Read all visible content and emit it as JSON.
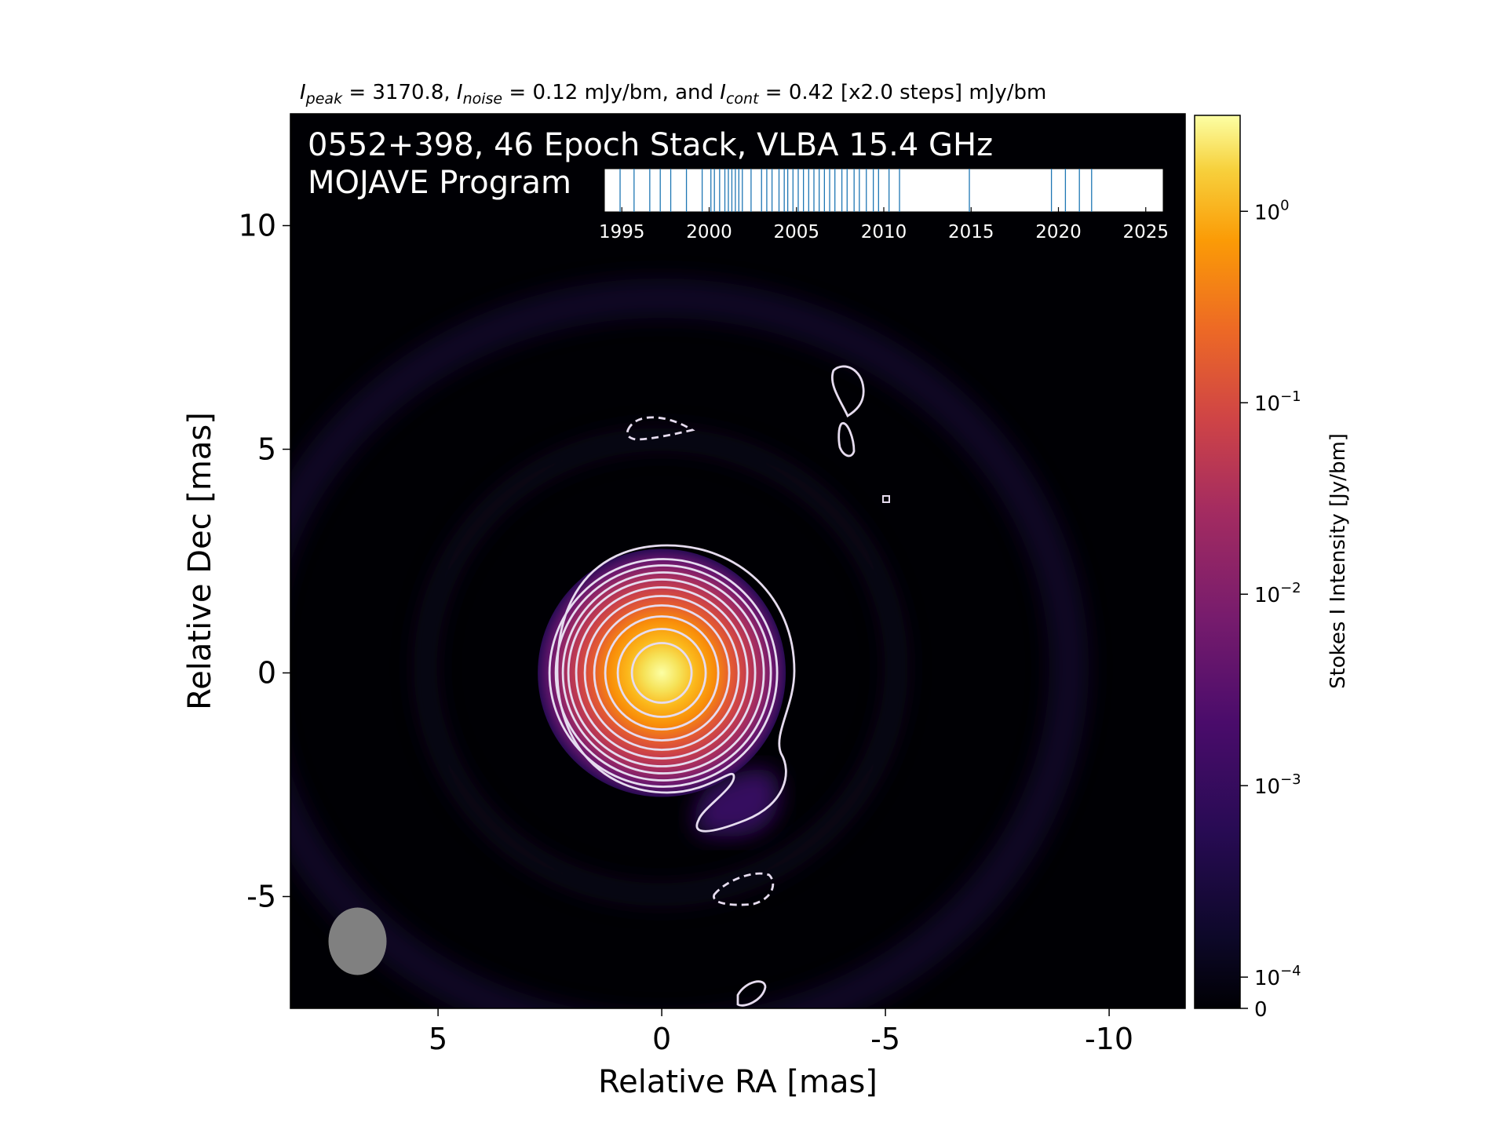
{
  "header": {
    "title_segments": [
      {
        "t": "I",
        "style": "italic"
      },
      {
        "t": "peak",
        "style": "sub"
      },
      {
        "t": " = 3170.8, ",
        "style": "normal"
      },
      {
        "t": "I",
        "style": "italic"
      },
      {
        "t": "noise",
        "style": "sub"
      },
      {
        "t": " = 0.12 mJy/bm, and ",
        "style": "normal"
      },
      {
        "t": "I",
        "style": "italic"
      },
      {
        "t": "cont",
        "style": "sub"
      },
      {
        "t": " = 0.42 [x2.0 steps] mJy/bm",
        "style": "normal"
      }
    ]
  },
  "panel": {
    "title_line1": "0552+398, 46 Epoch Stack, VLBA 15.4 GHz",
    "title_line2": "MOJAVE Program"
  },
  "colors": {
    "background": "#000004",
    "contour": "#e6dcef",
    "beam": "#808080",
    "epoch_line": "#1f77b4",
    "text_on_map": "#ffffff"
  },
  "chart_data": [
    {
      "type": "heatmap",
      "title": "",
      "xlabel": "Relative RA [mas]",
      "ylabel": "Relative Dec [mas]",
      "xlim": [
        8.3,
        -11.7
      ],
      "ylim": [
        -7.5,
        12.5
      ],
      "xticks": [
        5,
        0,
        -5,
        -10
      ],
      "xtick_labels": [
        "5",
        "0",
        "-5",
        "-10"
      ],
      "yticks": [
        10,
        5,
        0,
        -5
      ],
      "ytick_labels": [
        "10",
        "5",
        "0",
        "-5"
      ],
      "colormap": "inferno",
      "core": {
        "ra": 0,
        "dec": 0,
        "peak_jy_per_beam": 3.1708
      },
      "contour_base_mjy_per_beam": 0.42,
      "contour_step_factor": 2.0,
      "beam": {
        "ra": 6.8,
        "dec": -6.0,
        "major_mas": 1.5,
        "minor_mas": 1.3,
        "pa_deg": 0
      }
    },
    {
      "type": "colorbar",
      "label": "Stokes I Intensity [Jy/bm]",
      "scale": "symlog",
      "ticks": [
        0,
        0.0001,
        0.001,
        0.01,
        0.1,
        1
      ],
      "tick_labels": [
        {
          "base": "0",
          "exp": ""
        },
        {
          "base": "10",
          "exp": "−4"
        },
        {
          "base": "10",
          "exp": "−3"
        },
        {
          "base": "10",
          "exp": "−2"
        },
        {
          "base": "10",
          "exp": "−1"
        },
        {
          "base": "10",
          "exp": "0"
        }
      ]
    },
    {
      "type": "timeline",
      "xlim": [
        1994,
        2026
      ],
      "ticks": [
        1995,
        2000,
        2005,
        2010,
        2015,
        2020,
        2025
      ],
      "tick_labels": [
        "1995",
        "2000",
        "2005",
        "2010",
        "2015",
        "2020",
        "2025"
      ],
      "epochs": [
        1994.9,
        1995.7,
        1996.6,
        1997.2,
        1997.8,
        1998.7,
        1999.6,
        2000.1,
        2000.3,
        2000.6,
        2000.9,
        2001.1,
        2001.3,
        2001.5,
        2001.7,
        2001.9,
        2002.4,
        2003.0,
        2003.3,
        2003.6,
        2004.0,
        2004.3,
        2004.5,
        2004.8,
        2005.1,
        2005.4,
        2005.7,
        2006.0,
        2006.3,
        2006.6,
        2006.9,
        2007.2,
        2007.6,
        2007.9,
        2008.3,
        2008.6,
        2009.0,
        2009.4,
        2009.7,
        2010.3,
        2010.9,
        2014.9,
        2019.6,
        2020.4,
        2021.2,
        2021.9
      ]
    }
  ]
}
